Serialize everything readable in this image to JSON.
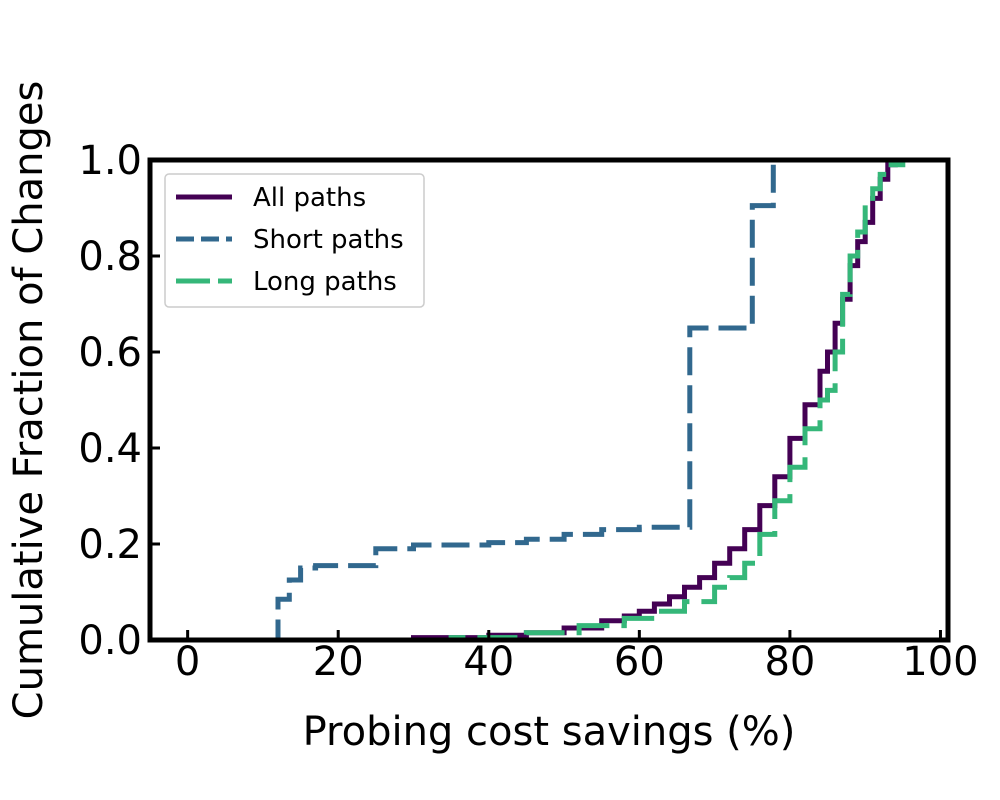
{
  "chart_data": {
    "type": "line",
    "title": "",
    "xlabel": "Probing cost savings (%)",
    "ylabel": "Cumulative Fraction of Changes",
    "xlim": [
      -5,
      101
    ],
    "ylim": [
      0,
      1.0
    ],
    "xticks": [
      0,
      20,
      40,
      60,
      80,
      100
    ],
    "xtick_labels": [
      "0",
      "20",
      "40",
      "60",
      "80",
      "100"
    ],
    "yticks": [
      0.0,
      0.2,
      0.4,
      0.6,
      0.8,
      1.0
    ],
    "ytick_labels": [
      "0.0",
      "0.2",
      "0.4",
      "0.6",
      "0.8",
      "1.0"
    ],
    "grid": false,
    "legend_position": "upper-left",
    "series": [
      {
        "name": "All paths",
        "color": "#440154",
        "style": "solid",
        "step": true,
        "x": [
          20,
          30,
          40,
          45,
          50,
          55,
          58,
          60,
          62,
          64,
          66,
          68,
          70,
          72,
          74,
          76,
          78,
          80,
          82,
          84,
          85,
          86,
          87,
          88,
          89,
          90,
          91,
          92,
          93,
          94
        ],
        "y": [
          0.0,
          0.005,
          0.01,
          0.015,
          0.025,
          0.04,
          0.05,
          0.06,
          0.075,
          0.09,
          0.11,
          0.13,
          0.16,
          0.19,
          0.23,
          0.28,
          0.34,
          0.42,
          0.49,
          0.56,
          0.6,
          0.66,
          0.71,
          0.78,
          0.83,
          0.87,
          0.92,
          0.96,
          0.99,
          1.0
        ]
      },
      {
        "name": "Short paths",
        "color": "#31688e",
        "style": "dashed",
        "step": true,
        "x": [
          11,
          12,
          13.5,
          15,
          17,
          25,
          30,
          40,
          45,
          50,
          55,
          60,
          66.7,
          75,
          77.8,
          96
        ],
        "y": [
          0.0,
          0.085,
          0.125,
          0.15,
          0.155,
          0.19,
          0.198,
          0.203,
          0.21,
          0.22,
          0.23,
          0.235,
          0.65,
          0.905,
          1.0,
          1.0
        ]
      },
      {
        "name": "Long paths",
        "color": "#35b779",
        "style": "long-dashed",
        "step": true,
        "x": [
          25,
          35,
          45,
          52,
          58,
          62,
          66,
          70,
          72,
          74,
          76,
          78,
          80,
          82,
          84,
          85,
          86,
          87,
          88,
          89,
          90,
          91,
          92,
          93,
          95
        ],
        "y": [
          0.0,
          0.005,
          0.015,
          0.03,
          0.045,
          0.06,
          0.08,
          0.11,
          0.13,
          0.16,
          0.22,
          0.29,
          0.36,
          0.44,
          0.5,
          0.52,
          0.6,
          0.72,
          0.8,
          0.85,
          0.91,
          0.94,
          0.97,
          0.99,
          1.0
        ]
      }
    ]
  }
}
